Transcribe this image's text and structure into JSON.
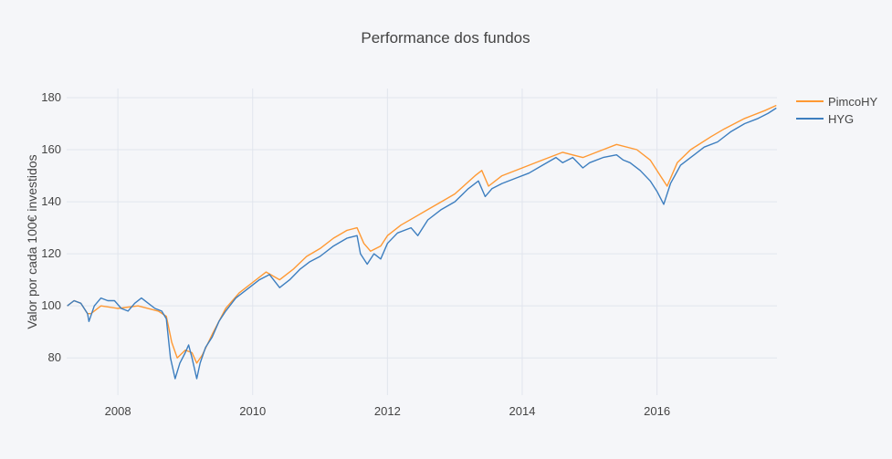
{
  "chart_data": {
    "type": "line",
    "title": "Performance dos fundos",
    "xlabel": "",
    "ylabel": "Valor por cada 100€ investidos",
    "xlim": [
      2007.24,
      2017.78
    ],
    "ylim": [
      65.7,
      183.5
    ],
    "x_ticks": [
      2008,
      2010,
      2012,
      2014,
      2016
    ],
    "x_tick_labels": [
      "2008",
      "2010",
      "2012",
      "2014",
      "2016"
    ],
    "y_ticks": [
      80,
      100,
      120,
      140,
      160,
      180
    ],
    "y_tick_labels": [
      "80",
      "100",
      "120",
      "140",
      "160",
      "180"
    ],
    "grid": true,
    "legend_position": "top-right",
    "series": [
      {
        "name": "PimcoHY",
        "color": "#ff9933",
        "x": [
          2007.25,
          2007.35,
          2007.45,
          2007.55,
          2007.6,
          2007.75,
          2008.0,
          2008.3,
          2008.6,
          2008.72,
          2008.8,
          2008.88,
          2009.0,
          2009.1,
          2009.17,
          2009.25,
          2009.4,
          2009.6,
          2009.8,
          2010.0,
          2010.2,
          2010.4,
          2010.6,
          2010.8,
          2011.0,
          2011.2,
          2011.4,
          2011.55,
          2011.65,
          2011.75,
          2011.9,
          2012.0,
          2012.2,
          2012.4,
          2012.6,
          2012.8,
          2013.0,
          2013.3,
          2013.4,
          2013.5,
          2013.7,
          2014.0,
          2014.3,
          2014.6,
          2014.9,
          2015.2,
          2015.4,
          2015.7,
          2015.9,
          2016.05,
          2016.15,
          2016.3,
          2016.5,
          2016.8,
          2017.0,
          2017.3,
          2017.6,
          2017.77
        ],
        "y": [
          100,
          102,
          101,
          97,
          97,
          100,
          99,
          100,
          98,
          96,
          86,
          80,
          83,
          82,
          78,
          81,
          89,
          99,
          105,
          109,
          113,
          110,
          114,
          119,
          122,
          126,
          129,
          130,
          124,
          121,
          123,
          127,
          131,
          134,
          137,
          140,
          143,
          150,
          152,
          146,
          150,
          153,
          156,
          159,
          157,
          160,
          162,
          160,
          156,
          150,
          146,
          155,
          160,
          165,
          168,
          172,
          175,
          177
        ]
      },
      {
        "name": "HYG",
        "color": "#3d7ebf",
        "x": [
          2007.25,
          2007.35,
          2007.45,
          2007.55,
          2007.57,
          2007.65,
          2007.75,
          2007.85,
          2007.95,
          2008.05,
          2008.15,
          2008.25,
          2008.35,
          2008.45,
          2008.55,
          2008.65,
          2008.72,
          2008.78,
          2008.85,
          2008.92,
          2009.0,
          2009.05,
          2009.1,
          2009.17,
          2009.22,
          2009.3,
          2009.4,
          2009.5,
          2009.6,
          2009.75,
          2009.9,
          2010.0,
          2010.1,
          2010.25,
          2010.4,
          2010.55,
          2010.7,
          2010.85,
          2011.0,
          2011.2,
          2011.4,
          2011.55,
          2011.6,
          2011.7,
          2011.8,
          2011.9,
          2012.0,
          2012.15,
          2012.35,
          2012.45,
          2012.6,
          2012.8,
          2013.0,
          2013.2,
          2013.35,
          2013.45,
          2013.55,
          2013.7,
          2013.9,
          2014.1,
          2014.3,
          2014.5,
          2014.6,
          2014.75,
          2014.9,
          2015.0,
          2015.2,
          2015.4,
          2015.5,
          2015.6,
          2015.75,
          2015.9,
          2016.0,
          2016.1,
          2016.2,
          2016.35,
          2016.5,
          2016.7,
          2016.9,
          2017.1,
          2017.3,
          2017.5,
          2017.65,
          2017.77
        ],
        "y": [
          100,
          102,
          101,
          97,
          94,
          100,
          103,
          102,
          102,
          99,
          98,
          101,
          103,
          101,
          99,
          98,
          95,
          80,
          72,
          78,
          82,
          85,
          80,
          72,
          78,
          84,
          88,
          94,
          98,
          103,
          106,
          108,
          110,
          112,
          107,
          110,
          114,
          117,
          119,
          123,
          126,
          127,
          120,
          116,
          120,
          118,
          124,
          128,
          130,
          127,
          133,
          137,
          140,
          145,
          148,
          142,
          145,
          147,
          149,
          151,
          154,
          157,
          155,
          157,
          153,
          155,
          157,
          158,
          156,
          155,
          152,
          148,
          144,
          139,
          147,
          154,
          157,
          161,
          163,
          167,
          170,
          172,
          174,
          176
        ]
      }
    ]
  }
}
